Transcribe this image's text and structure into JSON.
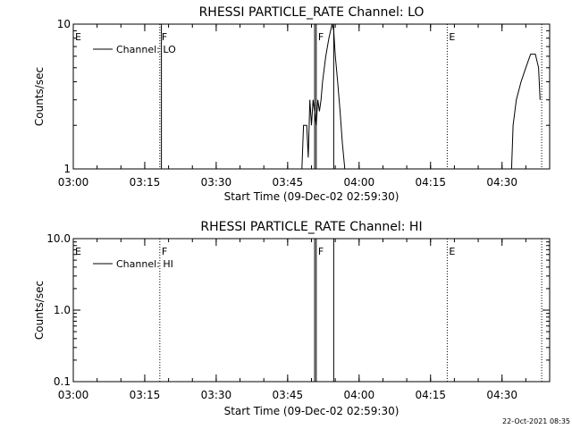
{
  "chart_data": [
    {
      "type": "line",
      "title": "RHESSI PARTICLE_RATE Channel: LO",
      "xlabel": "Start Time (09-Dec-02 02:59:30)",
      "ylabel": "Counts/sec",
      "yscale": "log",
      "ylim": [
        1,
        10
      ],
      "xlim": [
        "03:00",
        "04:40"
      ],
      "xticks": [
        "03:00",
        "03:15",
        "03:30",
        "03:45",
        "04:00",
        "04:15",
        "04:30"
      ],
      "yticks": [
        "1",
        "10"
      ],
      "legend": {
        "position": "top-left",
        "entries": [
          "Channel: LO"
        ]
      },
      "markers": [
        {
          "label": "E",
          "time": "03:00",
          "style": "dotted"
        },
        {
          "label": "F",
          "time": "03:18:10",
          "style": "dotted"
        },
        {
          "label": "F",
          "time": "03:51",
          "style": "solid"
        },
        {
          "label": "E",
          "time": "04:18:30",
          "style": "dotted"
        },
        {
          "label": "",
          "time": "04:38:20",
          "style": "dotted"
        }
      ],
      "extra_vlines": [
        {
          "time": "03:18:30",
          "style": "solid"
        },
        {
          "time": "03:50:40",
          "style": "solid"
        },
        {
          "time": "03:54:40",
          "style": "solid"
        }
      ],
      "series": [
        {
          "name": "Channel: LO",
          "segments": [
            [
              [
                "03:48:00",
                1.0
              ],
              [
                "03:48:20",
                2.0
              ],
              [
                "03:49:00",
                2.0
              ],
              [
                "03:49:20",
                1.2
              ],
              [
                "03:49:40",
                3.0
              ],
              [
                "03:50:00",
                2.0
              ],
              [
                "03:50:20",
                3.0
              ],
              [
                "03:51:00",
                2.0
              ],
              [
                "03:51:20",
                3.0
              ],
              [
                "03:51:40",
                2.5
              ],
              [
                "03:52:00",
                3.0
              ],
              [
                "03:52:20",
                4.0
              ],
              [
                "03:53:00",
                6.0
              ],
              [
                "03:53:40",
                8.0
              ],
              [
                "03:54:20",
                10.0
              ],
              [
                "03:54:40",
                9.0
              ],
              [
                "03:55:00",
                6.0
              ],
              [
                "03:55:30",
                4.0
              ],
              [
                "03:56:00",
                2.5
              ],
              [
                "03:56:30",
                1.5
              ],
              [
                "03:57:00",
                1.0
              ]
            ],
            [
              [
                "04:32:00",
                1.0
              ],
              [
                "04:32:20",
                2.0
              ],
              [
                "04:33:00",
                3.0
              ],
              [
                "04:34:00",
                4.0
              ],
              [
                "04:35:00",
                5.0
              ],
              [
                "04:36:00",
                6.2
              ],
              [
                "04:37:00",
                6.2
              ],
              [
                "04:37:40",
                5.0
              ],
              [
                "04:38:00",
                3.0
              ]
            ]
          ]
        }
      ]
    },
    {
      "type": "line",
      "title": "RHESSI PARTICLE_RATE Channel: HI",
      "xlabel": "Start Time (09-Dec-02 02:59:30)",
      "ylabel": "Counts/sec",
      "yscale": "log",
      "ylim": [
        0.1,
        10
      ],
      "xlim": [
        "03:00",
        "04:40"
      ],
      "xticks": [
        "03:00",
        "03:15",
        "03:30",
        "03:45",
        "04:00",
        "04:15",
        "04:30"
      ],
      "yticks": [
        "0.1",
        "1.0",
        "10.0"
      ],
      "legend": {
        "position": "top-left",
        "entries": [
          "Channel: HI"
        ]
      },
      "markers": [
        {
          "label": "E",
          "time": "03:00",
          "style": "dotted"
        },
        {
          "label": "F",
          "time": "03:18:10",
          "style": "dotted"
        },
        {
          "label": "F",
          "time": "03:51",
          "style": "solid"
        },
        {
          "label": "E",
          "time": "04:18:30",
          "style": "dotted"
        },
        {
          "label": "",
          "time": "04:38:20",
          "style": "dotted"
        }
      ],
      "extra_vlines": [
        {
          "time": "03:50:40",
          "style": "solid"
        },
        {
          "time": "03:54:40",
          "style": "solid"
        }
      ],
      "series": [
        {
          "name": "Channel: HI",
          "segments": []
        }
      ]
    }
  ],
  "footer": {
    "timestamp": "22-Oct-2021 08:35"
  }
}
